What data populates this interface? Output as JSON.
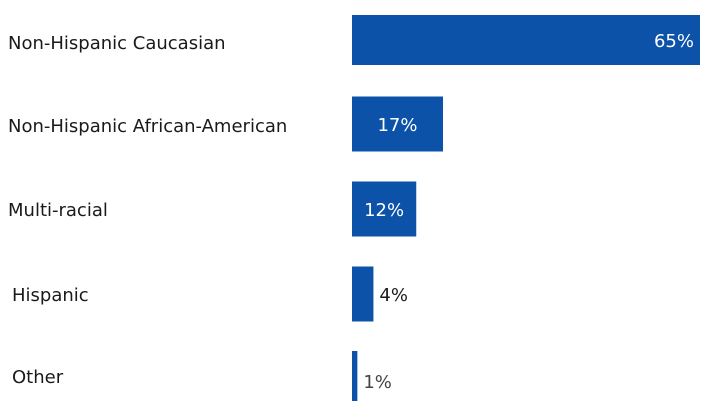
{
  "chart_data": {
    "type": "bar",
    "orientation": "horizontal",
    "categories": [
      "Non-Hispanic Caucasian",
      "Non-Hispanic African-American",
      "Multi-racial",
      "Hispanic",
      "Other"
    ],
    "values": [
      65,
      17,
      12,
      4,
      1
    ],
    "value_labels": [
      "65%",
      "17%",
      "12%",
      "4%",
      "1%"
    ],
    "unit": "%",
    "xlim": [
      0,
      65
    ],
    "grid": false,
    "legend": "none",
    "colors": {
      "bar": "#0B52A8",
      "label_text": "#1a1a1a",
      "inside_value_text": "#ffffff",
      "outside_value_text_dark": "#1a1a1a",
      "outside_value_text_light": "#444444"
    }
  }
}
